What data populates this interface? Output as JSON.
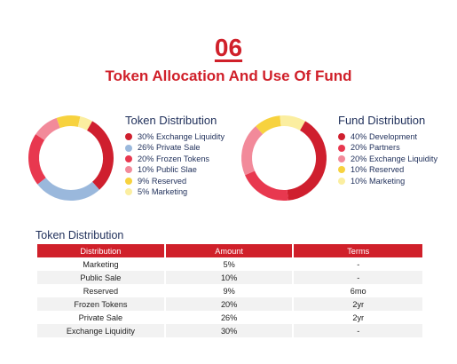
{
  "header": {
    "number": "06",
    "title": "Token Allocation And Use Of Fund"
  },
  "token_distribution": {
    "title": "Token Distribution",
    "items": [
      {
        "label": "30% Exchange Liquidity",
        "value": 30,
        "color": "#cf1f2e"
      },
      {
        "label": "26% Private Sale",
        "value": 26,
        "color": "#9ab8dc"
      },
      {
        "label": "20% Frozen Tokens",
        "value": 20,
        "color": "#e8384f"
      },
      {
        "label": "10% Public Slae",
        "value": 10,
        "color": "#f28a9a"
      },
      {
        "label": "9% Reserved",
        "value": 9,
        "color": "#f7d23e"
      },
      {
        "label": "5% Marketing",
        "value": 5,
        "color": "#fbeea0"
      }
    ]
  },
  "fund_distribution": {
    "title": "Fund Distribution",
    "items": [
      {
        "label": "40% Development",
        "value": 40,
        "color": "#cf1f2e"
      },
      {
        "label": "20% Partners",
        "value": 20,
        "color": "#e8384f"
      },
      {
        "label": "20% Exchange Liquidity",
        "value": 20,
        "color": "#f28a9a"
      },
      {
        "label": "10% Reserved",
        "value": 10,
        "color": "#f7d23e"
      },
      {
        "label": "10% Marketing",
        "value": 10,
        "color": "#fbeea0"
      }
    ]
  },
  "table": {
    "title": "Token Distribution",
    "headers": [
      "Distribution",
      "Amount",
      "Terms"
    ],
    "rows": [
      [
        "Marketing",
        "5%",
        "-"
      ],
      [
        "Public Sale",
        "10%",
        "-"
      ],
      [
        "Reserved",
        "9%",
        "6mo"
      ],
      [
        "Frozen Tokens",
        "20%",
        "2yr"
      ],
      [
        "Private Sale",
        "26%",
        "2yr"
      ],
      [
        "Exchange Liquidity",
        "30%",
        "-"
      ]
    ]
  }
}
